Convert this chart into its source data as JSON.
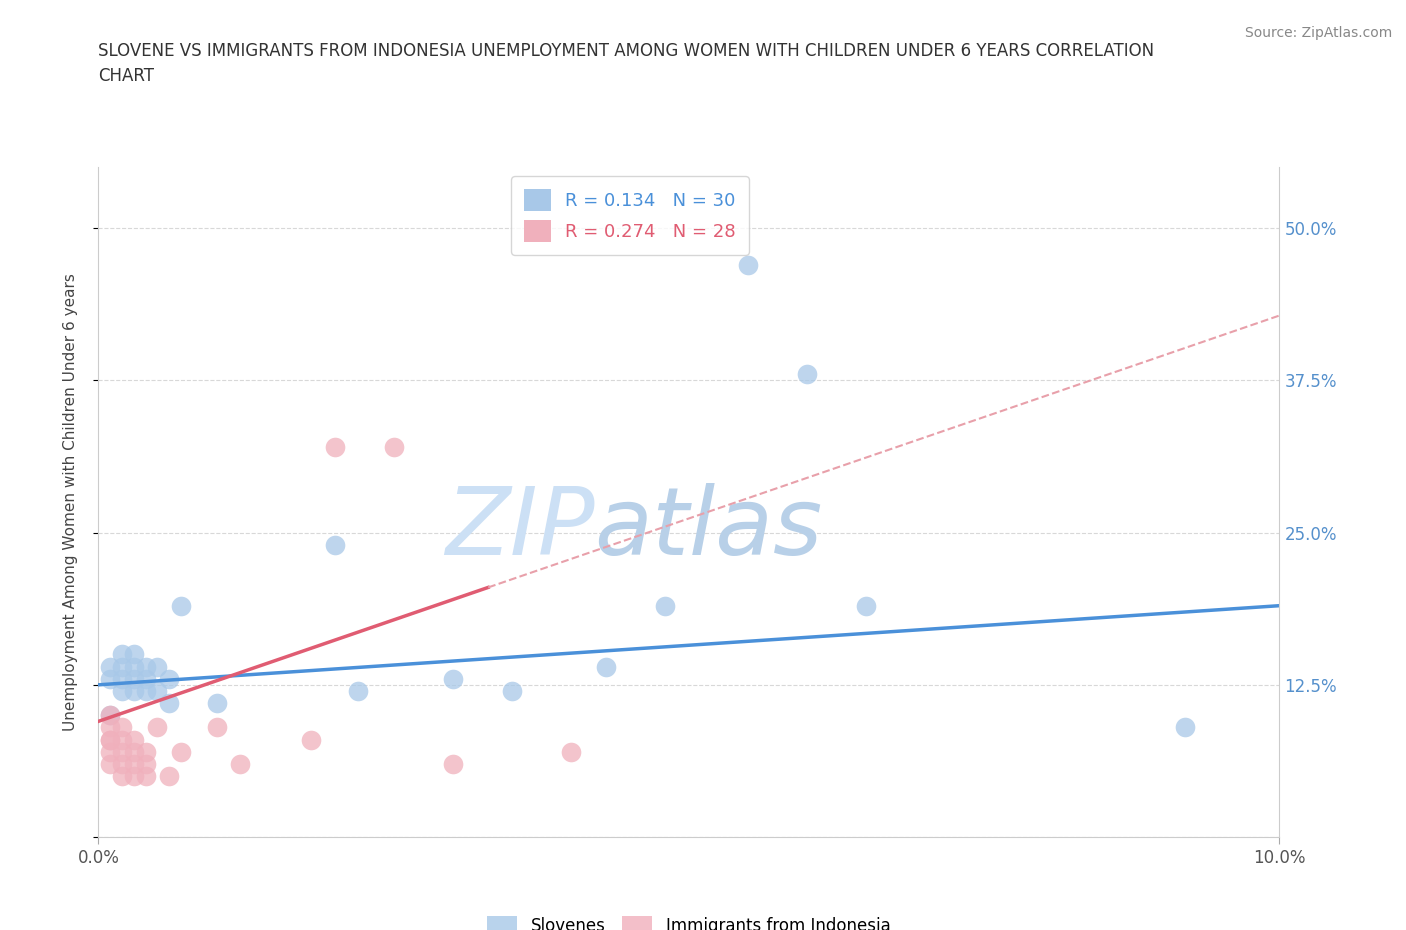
{
  "title": "SLOVENE VS IMMIGRANTS FROM INDONESIA UNEMPLOYMENT AMONG WOMEN WITH CHILDREN UNDER 6 YEARS CORRELATION\nCHART",
  "source": "Source: ZipAtlas.com",
  "ylabel": "Unemployment Among Women with Children Under 6 years",
  "xlim": [
    0.0,
    0.1
  ],
  "ylim": [
    0.0,
    0.55
  ],
  "yticks": [
    0.0,
    0.125,
    0.25,
    0.375,
    0.5
  ],
  "ytick_labels": [
    "",
    "12.5%",
    "25.0%",
    "37.5%",
    "50.0%"
  ],
  "bg_color": "#ffffff",
  "grid_color": "#d8d8d8",
  "blue_color": "#a8c8e8",
  "pink_color": "#f0b0bc",
  "blue_line_color": "#4a90d9",
  "pink_line_color": "#e05c72",
  "pink_dash_color": "#e8a0aa",
  "tick_label_color": "#5590cc",
  "legend_blue_R": "R = 0.134",
  "legend_blue_N": "N = 30",
  "legend_pink_R": "R = 0.274",
  "legend_pink_N": "N = 28",
  "slovene_x": [
    0.001,
    0.001,
    0.001,
    0.002,
    0.002,
    0.002,
    0.002,
    0.003,
    0.003,
    0.003,
    0.003,
    0.004,
    0.004,
    0.004,
    0.005,
    0.005,
    0.006,
    0.006,
    0.007,
    0.01,
    0.02,
    0.022,
    0.03,
    0.035,
    0.043,
    0.048,
    0.055,
    0.06,
    0.065,
    0.092
  ],
  "slovene_y": [
    0.1,
    0.13,
    0.14,
    0.12,
    0.13,
    0.14,
    0.15,
    0.12,
    0.13,
    0.14,
    0.15,
    0.12,
    0.13,
    0.14,
    0.12,
    0.14,
    0.11,
    0.13,
    0.19,
    0.11,
    0.24,
    0.12,
    0.13,
    0.12,
    0.14,
    0.19,
    0.47,
    0.38,
    0.19,
    0.09
  ],
  "indonesia_x": [
    0.001,
    0.001,
    0.001,
    0.001,
    0.001,
    0.001,
    0.002,
    0.002,
    0.002,
    0.002,
    0.002,
    0.003,
    0.003,
    0.003,
    0.003,
    0.004,
    0.004,
    0.004,
    0.005,
    0.006,
    0.007,
    0.01,
    0.012,
    0.018,
    0.02,
    0.025,
    0.03,
    0.04
  ],
  "indonesia_y": [
    0.06,
    0.07,
    0.08,
    0.08,
    0.09,
    0.1,
    0.05,
    0.06,
    0.07,
    0.08,
    0.09,
    0.05,
    0.06,
    0.07,
    0.08,
    0.05,
    0.06,
    0.07,
    0.09,
    0.05,
    0.07,
    0.09,
    0.06,
    0.08,
    0.32,
    0.32,
    0.06,
    0.07
  ],
  "watermark_top": "ZIP",
  "watermark_bot": "atlas",
  "watermark_color": "#cce0f5",
  "watermark_fontsize": 68
}
